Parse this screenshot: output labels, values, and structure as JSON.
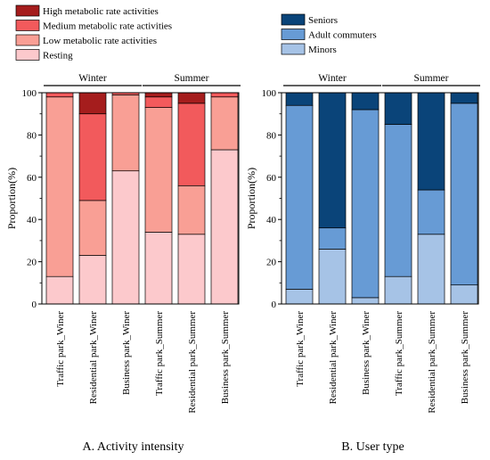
{
  "chart_data": [
    {
      "type": "bar",
      "stacked": true,
      "caption": "A. Activity intensity",
      "ylabel": "Proportion(%)",
      "ylim": [
        0,
        100
      ],
      "yticks": [
        0,
        20,
        40,
        60,
        80,
        100
      ],
      "categories": [
        "Traffic park_Winer",
        "Residential park_Winer",
        "Business park_Winer",
        "Traffic park_Summer",
        "Residential park_Summer",
        "Business park_Summer"
      ],
      "groups": [
        {
          "label": "Winter",
          "categories": [
            0,
            1,
            2
          ]
        },
        {
          "label": "Summer",
          "categories": [
            3,
            4,
            5
          ]
        }
      ],
      "legend_position": "top-left",
      "series": [
        {
          "name": "Resting",
          "color": "#fcc9cc",
          "values": [
            13,
            23,
            63,
            34,
            33,
            73
          ]
        },
        {
          "name": "Low metabolic rate activities",
          "color": "#f99f95",
          "values": [
            85,
            26,
            36,
            59,
            23,
            25
          ]
        },
        {
          "name": "Medium metabolic rate activities",
          "color": "#f25a5c",
          "values": [
            2,
            41,
            1,
            5,
            39,
            2
          ]
        },
        {
          "name": "High metabolic rate activities",
          "color": "#a51d1d",
          "values": [
            0,
            10,
            0,
            2,
            5,
            0
          ]
        }
      ]
    },
    {
      "type": "bar",
      "stacked": true,
      "caption": "B. User type",
      "ylabel": "Proportion(%)",
      "ylim": [
        0,
        100
      ],
      "yticks": [
        0,
        20,
        40,
        60,
        80,
        100
      ],
      "categories": [
        "Traffic park_Winer",
        "Residential park_Winer",
        "Business park_Winer",
        "Traffic park_Summer",
        "Residential park_Summer",
        "Business park_Summer"
      ],
      "groups": [
        {
          "label": "Winter",
          "categories": [
            0,
            1,
            2
          ]
        },
        {
          "label": "Summer",
          "categories": [
            3,
            4,
            5
          ]
        }
      ],
      "legend_position": "top-left",
      "series": [
        {
          "name": "Minors",
          "color": "#a6c3e6",
          "values": [
            7,
            26,
            3,
            13,
            33,
            9
          ]
        },
        {
          "name": "Adult commuters",
          "color": "#679bd5",
          "values": [
            87,
            10,
            89,
            72,
            21,
            86
          ]
        },
        {
          "name": "Seniors",
          "color": "#0a4479",
          "values": [
            6,
            64,
            8,
            15,
            46,
            5
          ]
        }
      ]
    }
  ]
}
